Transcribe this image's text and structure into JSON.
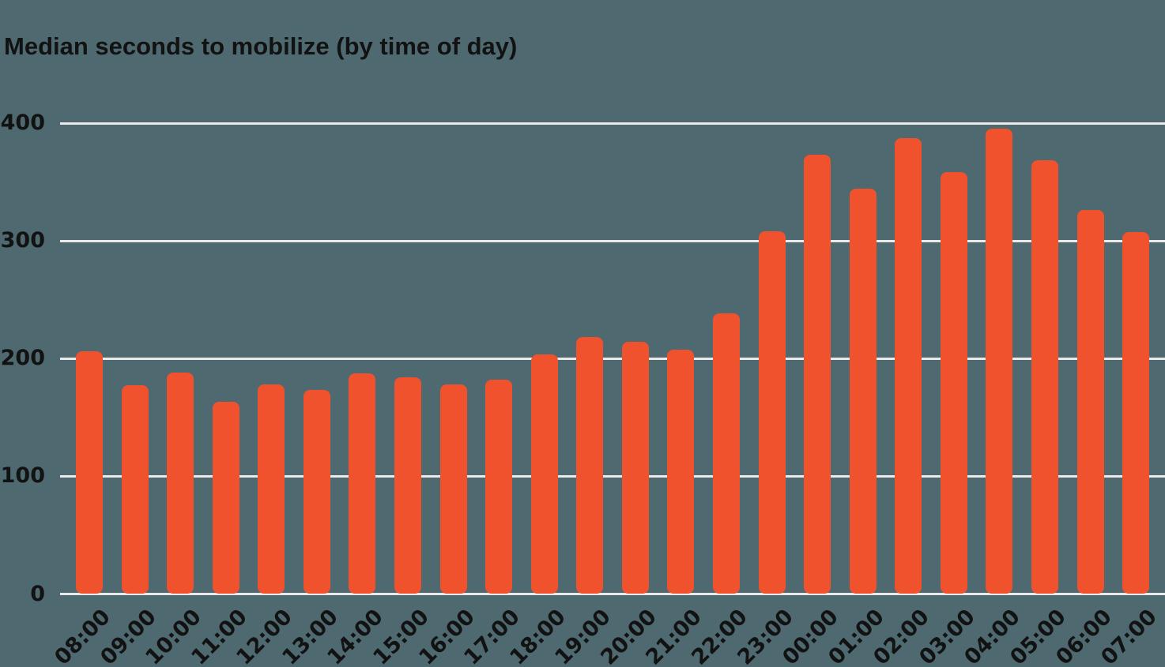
{
  "title": "Median seconds to mobilize (by time of day)",
  "colors": {
    "background": "#4E6970",
    "bar": "#F1522E",
    "gridline": "#ECEAE8",
    "text": "#121212"
  },
  "chart_data": {
    "type": "bar",
    "title": "Median seconds to mobilize (by time of day)",
    "categories": [
      "08:00",
      "09:00",
      "10:00",
      "11:00",
      "12:00",
      "13:00",
      "14:00",
      "15:00",
      "16:00",
      "17:00",
      "18:00",
      "19:00",
      "20:00",
      "21:00",
      "22:00",
      "23:00",
      "00:00",
      "01:00",
      "02:00",
      "03:00",
      "04:00",
      "05:00",
      "06:00",
      "07:00"
    ],
    "values": [
      206,
      177,
      188,
      163,
      178,
      173,
      187,
      184,
      178,
      182,
      203,
      218,
      214,
      207,
      238,
      308,
      373,
      344,
      387,
      358,
      395,
      368,
      326,
      307
    ],
    "xlabel": "",
    "ylabel": "",
    "yticks": [
      0,
      100,
      200,
      300,
      400
    ],
    "ylim": [
      0,
      400
    ],
    "grid": true,
    "gridline_orientation": "horizontal",
    "legend": false,
    "bar_style": "rounded-ends",
    "orientation": "vertical"
  }
}
